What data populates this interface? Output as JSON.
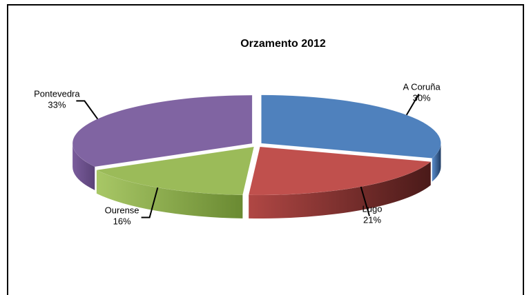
{
  "chart_data": {
    "type": "pie",
    "title": "Orzamento 2012",
    "style": "3d-exploded-perspective",
    "slices": [
      {
        "label": "A Coruña",
        "value": 30,
        "value_label": "30%",
        "color": "#4F81BD"
      },
      {
        "label": "Lugo",
        "value": 21,
        "value_label": "21%",
        "color": "#C0504D"
      },
      {
        "label": "Ourense",
        "value": 16,
        "value_label": "16%",
        "color": "#9BBB59"
      },
      {
        "label": "Pontevedra",
        "value": 33,
        "value_label": "33%",
        "color": "#8064A2"
      }
    ]
  }
}
